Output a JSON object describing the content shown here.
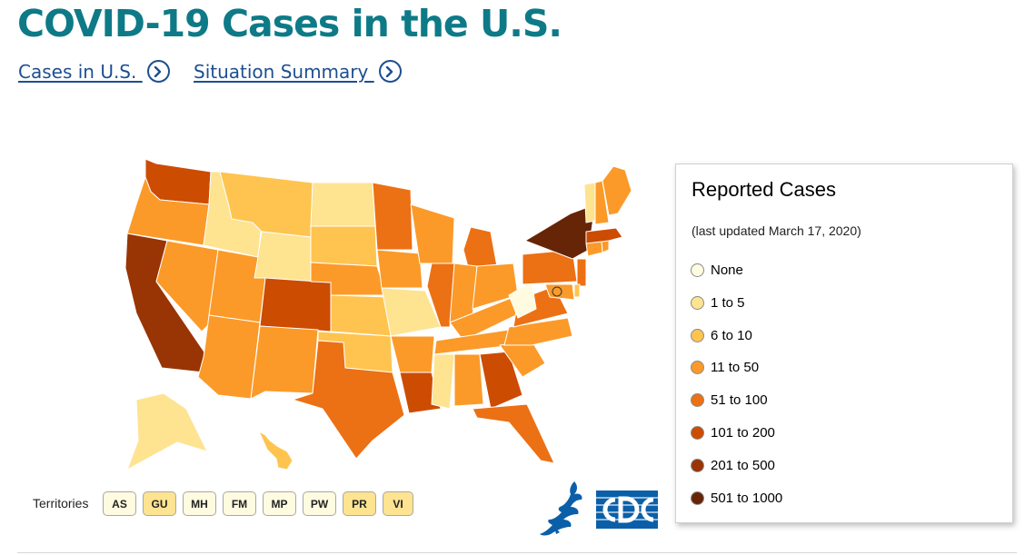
{
  "page": {
    "title": "COVID-19 Cases in the U.S.",
    "links": [
      "Cases in U.S. ",
      "Situation Summary "
    ]
  },
  "legend": {
    "title": "Reported Cases",
    "updated": "(last updated March 17, 2020)",
    "items": [
      {
        "label": "None",
        "color": "#fefbe0"
      },
      {
        "label": "1 to 5",
        "color": "#fee391"
      },
      {
        "label": "6 to 10",
        "color": "#fec44f"
      },
      {
        "label": "11 to 50",
        "color": "#fb9a29"
      },
      {
        "label": "51 to 100",
        "color": "#ec7014"
      },
      {
        "label": "101 to 200",
        "color": "#cc4c02"
      },
      {
        "label": "201 to 500",
        "color": "#993404"
      },
      {
        "label": "501 to 1000",
        "color": "#662506"
      }
    ]
  },
  "territories": {
    "label": "Territories",
    "items": [
      {
        "code": "AS",
        "color": "#fefbe0"
      },
      {
        "code": "GU",
        "color": "#fee391"
      },
      {
        "code": "MH",
        "color": "#fefbe0"
      },
      {
        "code": "FM",
        "color": "#fefbe0"
      },
      {
        "code": "MP",
        "color": "#fefbe0"
      },
      {
        "code": "PW",
        "color": "#fefbe0"
      },
      {
        "code": "PR",
        "color": "#fee391"
      },
      {
        "code": "VI",
        "color": "#fee391"
      }
    ]
  },
  "colors": {
    "title": "#0e7a87",
    "link": "#1d4f91",
    "state_border": "#ffffff",
    "logo_blue": "#0b5fa8"
  }
}
